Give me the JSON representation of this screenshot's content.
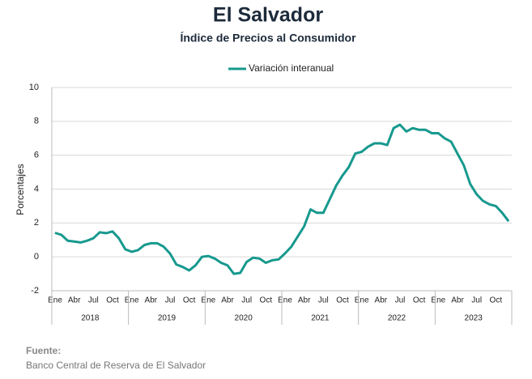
{
  "chart_data": {
    "type": "line",
    "title": "El Salvador",
    "subtitle": "Índice de Precios al Consumidor",
    "y_label": "Porcentajes",
    "categories": [
      "Ene",
      null,
      null,
      "Abr",
      null,
      null,
      "Jul",
      null,
      null,
      "Oct",
      null,
      null,
      "Ene",
      null,
      null,
      "Abr",
      null,
      null,
      "Jul",
      null,
      null,
      "Oct",
      null,
      null,
      "Ene",
      null,
      null,
      "Abr",
      null,
      null,
      "Jul",
      null,
      null,
      "Oct",
      null,
      null,
      "Ene",
      null,
      null,
      "Abr",
      null,
      null,
      "Jul",
      null,
      null,
      "Oct",
      null,
      null,
      "Ene",
      null,
      null,
      "Abr",
      null,
      null,
      "Jul",
      null,
      null,
      "Oct",
      null,
      null,
      "Ene",
      null,
      null,
      "Abr",
      null,
      null,
      "Jul",
      null,
      null,
      "Oct",
      null,
      null
    ],
    "years": [
      "2018",
      "2019",
      "2020",
      "2021",
      "2022",
      "2023"
    ],
    "series": [
      {
        "name": "Variación interanual",
        "color": "#17998e",
        "values": [
          1.42,
          1.3,
          0.95,
          0.9,
          0.85,
          0.95,
          1.1,
          1.45,
          1.4,
          1.5,
          1.1,
          0.45,
          0.3,
          0.4,
          0.7,
          0.8,
          0.8,
          0.6,
          0.2,
          -0.45,
          -0.6,
          -0.8,
          -0.5,
          0.0,
          0.05,
          -0.1,
          -0.35,
          -0.5,
          -1.0,
          -0.95,
          -0.3,
          -0.05,
          -0.1,
          -0.35,
          -0.2,
          -0.15,
          0.2,
          0.6,
          1.2,
          1.8,
          2.8,
          2.6,
          2.6,
          3.4,
          4.2,
          4.8,
          5.3,
          6.1,
          6.2,
          6.5,
          6.7,
          6.7,
          6.6,
          7.6,
          7.8,
          7.4,
          7.6,
          7.5,
          7.5,
          7.3,
          7.3,
          7.0,
          6.8,
          6.1,
          5.4,
          4.3,
          3.7,
          3.3,
          3.1,
          3.0,
          2.6,
          2.1
        ]
      }
    ],
    "ylim": [
      -2,
      10
    ],
    "yticks": [
      -2,
      0,
      2,
      4,
      6,
      8,
      10
    ],
    "grid": true,
    "source_label": "Fuente:",
    "source": "Banco Central de Reserva de El Salvador"
  }
}
